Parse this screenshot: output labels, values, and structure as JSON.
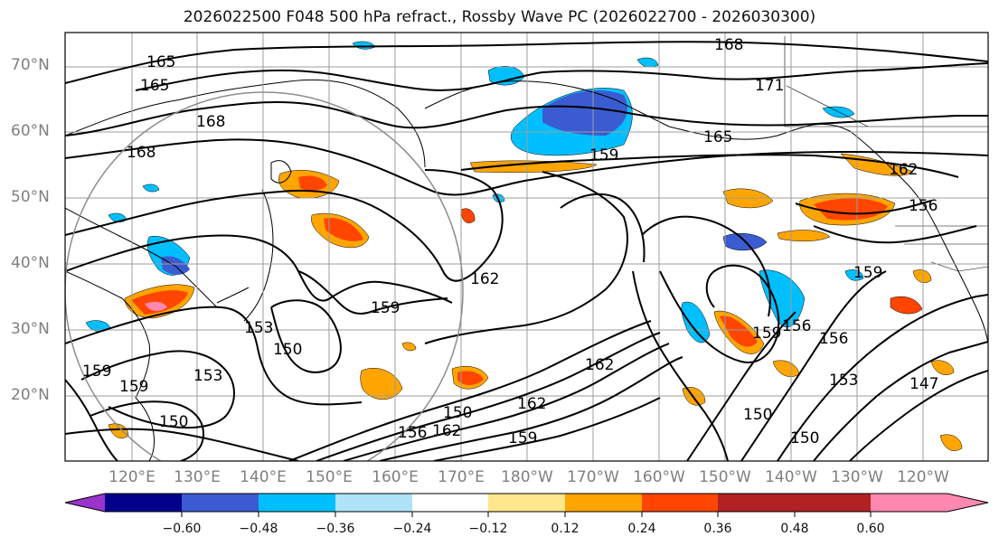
{
  "title": "2026022500 F048 500 hPa refract., Rossby Wave PC (2026022700 - 2026030300)",
  "latitude_labels": [
    "70°N",
    "60°N",
    "50°N",
    "40°N",
    "30°N",
    "20°N"
  ],
  "longitude_labels": [
    "120°E",
    "130°E",
    "140°E",
    "150°E",
    "160°E",
    "170°E",
    "180°W",
    "170°W",
    "160°W",
    "150°W",
    "140°W",
    "130°W",
    "120°W"
  ],
  "contour_labels": [
    "168",
    "165",
    "165",
    "168",
    "168",
    "171",
    "165",
    "159",
    "162",
    "156",
    "162",
    "159",
    "159",
    "153",
    "150",
    "159",
    "159",
    "153",
    "150",
    "150",
    "162",
    "162",
    "159",
    "156",
    "162",
    "159",
    "156",
    "150",
    "153",
    "156",
    "150",
    "147"
  ],
  "colorbar": {
    "ticks": [
      "−0.60",
      "−0.48",
      "−0.36",
      "−0.24",
      "−0.12",
      "0.12",
      "0.24",
      "0.36",
      "0.48",
      "0.60"
    ],
    "colors": [
      "#9933cc",
      "#00008b",
      "#3b5bd0",
      "#00bfff",
      "#aee3fa",
      "#ffffff",
      "#ffe78c",
      "#ffa500",
      "#ff4500",
      "#b22222",
      "#ff88b0"
    ]
  }
}
